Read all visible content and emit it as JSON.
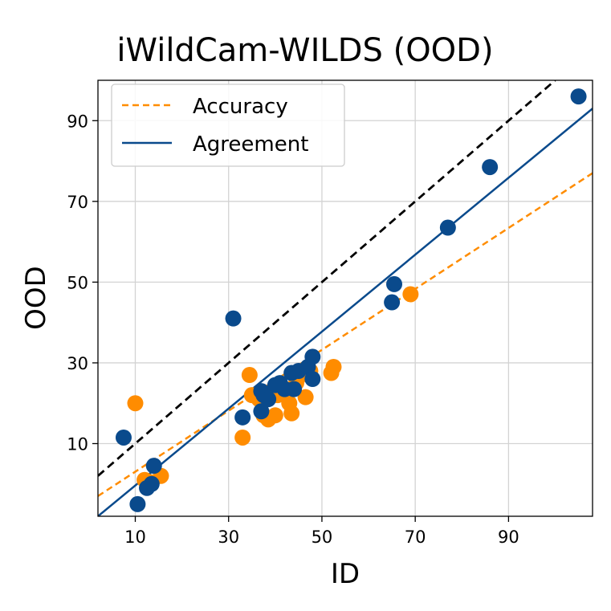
{
  "chart_data": {
    "type": "scatter",
    "title": "iWildCam-WILDS (OOD)",
    "xlabel": "ID",
    "ylabel": "OOD",
    "xlim": [
      2,
      108
    ],
    "ylim": [
      -8,
      100
    ],
    "xticks": [
      10,
      30,
      50,
      70,
      90
    ],
    "yticks": [
      10,
      30,
      50,
      70,
      90
    ],
    "grid": true,
    "legend_position": "top-left",
    "colors": {
      "accuracy": "#ff8c00",
      "agreement": "#0a4a8c",
      "diagonal": "#000000"
    },
    "series": [
      {
        "name": "Accuracy",
        "kind": "points",
        "points": [
          [
            10,
            20
          ],
          [
            15.5,
            2
          ],
          [
            12,
            1
          ],
          [
            13,
            0.5
          ],
          [
            33,
            11.5
          ],
          [
            34.5,
            27
          ],
          [
            35,
            22
          ],
          [
            36.5,
            21
          ],
          [
            37.5,
            17
          ],
          [
            38.5,
            16
          ],
          [
            40,
            17
          ],
          [
            40.5,
            22
          ],
          [
            41.5,
            24
          ],
          [
            43,
            20
          ],
          [
            43.5,
            17.5
          ],
          [
            44.5,
            25
          ],
          [
            45,
            26.5
          ],
          [
            46.5,
            21.5
          ],
          [
            47.5,
            28
          ],
          [
            52,
            27.5
          ],
          [
            52.5,
            29
          ],
          [
            69,
            47
          ]
        ]
      },
      {
        "name": "Agreement",
        "kind": "points",
        "points": [
          [
            7.5,
            11.5
          ],
          [
            10.5,
            -5
          ],
          [
            12.5,
            -1
          ],
          [
            13.5,
            0
          ],
          [
            14,
            4.5
          ],
          [
            31,
            41
          ],
          [
            33,
            16.5
          ],
          [
            37,
            18
          ],
          [
            37,
            23
          ],
          [
            37.5,
            22
          ],
          [
            38.5,
            21
          ],
          [
            40,
            24.5
          ],
          [
            41,
            25
          ],
          [
            42,
            23.5
          ],
          [
            43.5,
            27.5
          ],
          [
            44,
            23.5
          ],
          [
            45,
            28
          ],
          [
            47,
            29
          ],
          [
            48,
            26
          ],
          [
            48,
            31.5
          ],
          [
            65,
            45
          ],
          [
            65.5,
            49.5
          ],
          [
            77,
            63.5
          ],
          [
            86,
            78.5
          ],
          [
            105,
            96
          ]
        ]
      },
      {
        "name": "Accuracy",
        "kind": "fit",
        "style": "dashed",
        "line": [
          [
            2,
            -3
          ],
          [
            108,
            77
          ]
        ]
      },
      {
        "name": "Agreement",
        "kind": "fit",
        "style": "solid",
        "line": [
          [
            2,
            -8
          ],
          [
            108,
            93
          ]
        ]
      },
      {
        "name": "",
        "kind": "diagonal",
        "style": "dashed",
        "line": [
          [
            2,
            2
          ],
          [
            100,
            100
          ]
        ]
      }
    ]
  }
}
